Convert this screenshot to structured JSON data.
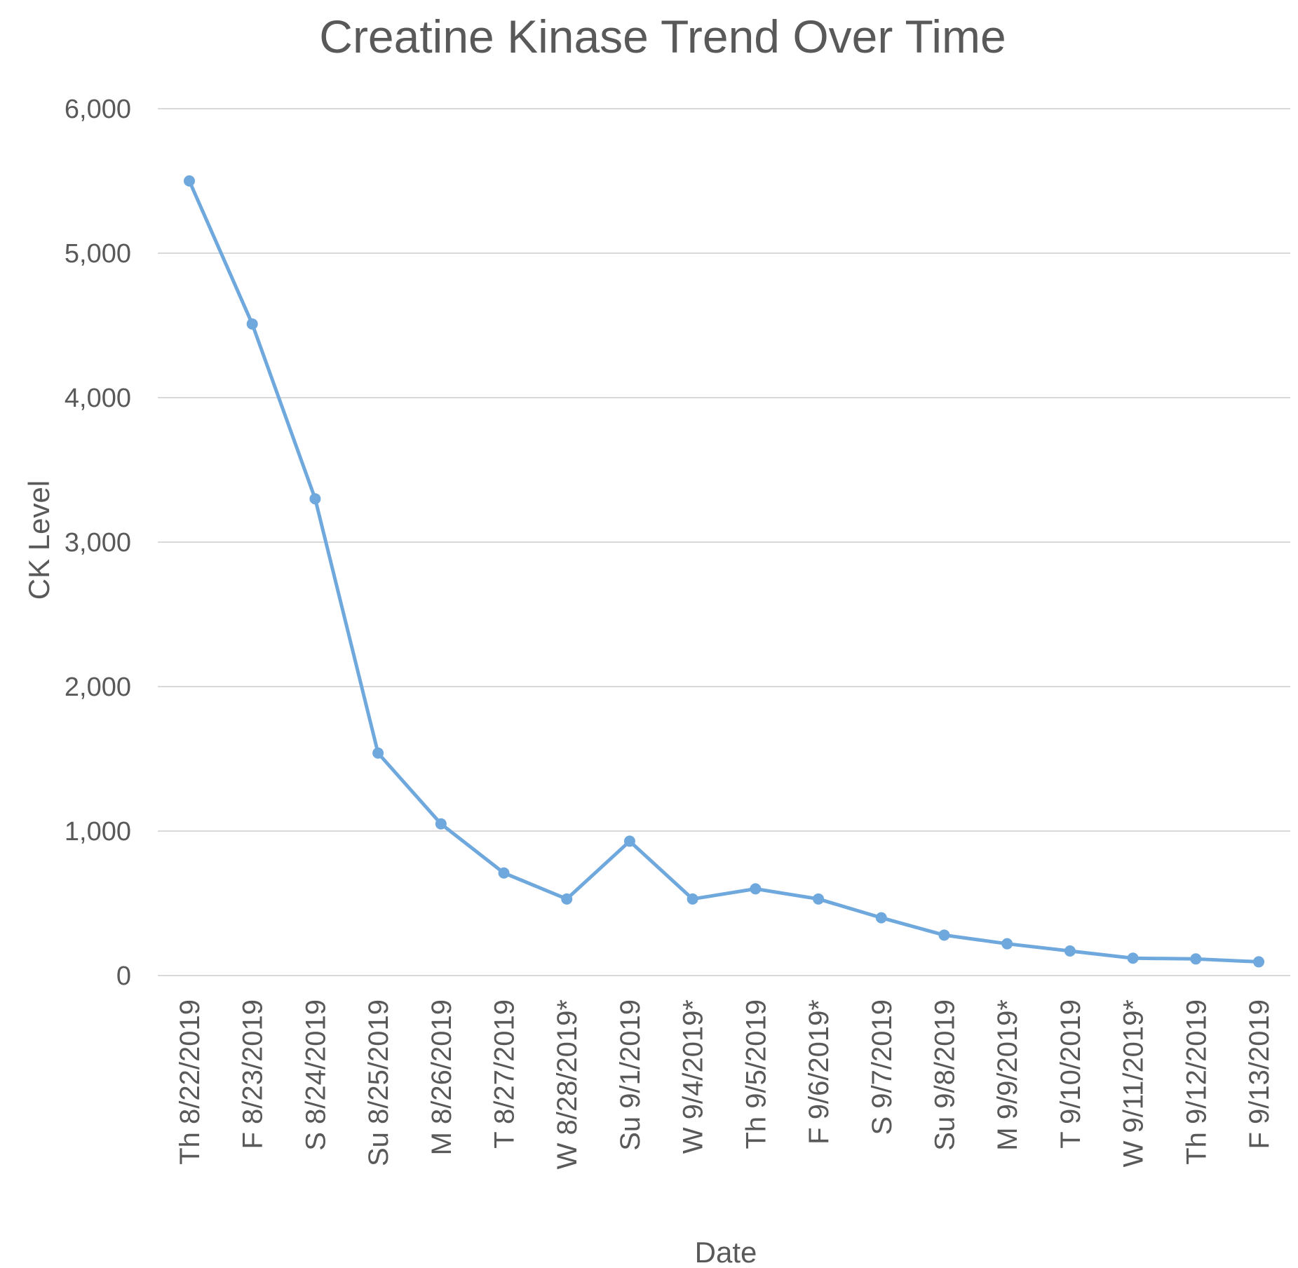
{
  "chart_data": {
    "type": "line",
    "title": "Creatine Kinase Trend Over Time",
    "xlabel": "Date",
    "ylabel": "CK Level",
    "ylim": [
      0,
      6000
    ],
    "yticks": [
      0,
      1000,
      2000,
      3000,
      4000,
      5000,
      6000
    ],
    "ytick_labels": [
      "0",
      "1,000",
      "2,000",
      "3,000",
      "4,000",
      "5,000",
      "6,000"
    ],
    "grid": true,
    "legend": "none",
    "color": "#6fa8dc",
    "categories": [
      "Th 8/22/2019",
      "F 8/23/2019",
      "S 8/24/2019",
      "Su 8/25/2019",
      "M 8/26/2019",
      "T 8/27/2019",
      "W 8/28/2019*",
      "Su 9/1/2019",
      "W 9/4/2019*",
      "Th 9/5/2019",
      "F 9/6/2019*",
      "S 9/7/2019",
      "Su 9/8/2019",
      "M 9/9/2019*",
      "T 9/10/2019",
      "W 9/11/2019*",
      "Th 9/12/2019",
      "F 9/13/2019"
    ],
    "values": [
      5500,
      4510,
      3300,
      1540,
      1050,
      710,
      530,
      930,
      530,
      600,
      530,
      400,
      280,
      220,
      170,
      120,
      115,
      95
    ]
  }
}
